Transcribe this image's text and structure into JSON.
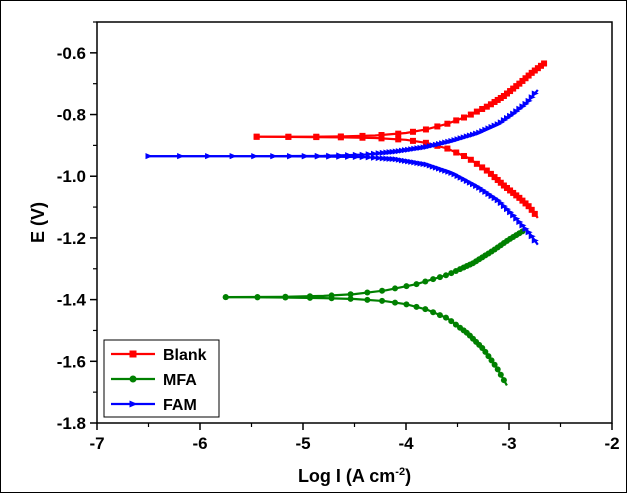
{
  "chart_data": {
    "type": "line",
    "title": "",
    "xlabel": "Log I (A cm",
    "xlabel_sup": "-2",
    "xlabel_suffix": ")",
    "ylabel": "E (V)",
    "xlim": [
      -7,
      -2
    ],
    "ylim": [
      -1.8,
      -0.5
    ],
    "xticks": [
      "-7",
      "-6",
      "-5",
      "-4",
      "-3",
      "-2"
    ],
    "yticks": [
      "-1.8",
      "-1.6",
      "-1.4",
      "-1.2",
      "-1.0",
      "-0.8",
      "-0.6"
    ],
    "grid": false,
    "legend_position": "bottom-left",
    "series": [
      {
        "name": "Blank",
        "color": "#ff0000",
        "marker": "square",
        "cathodic": [
          [
            -5.45,
            -0.872
          ],
          [
            -4.9,
            -0.873
          ],
          [
            -4.6,
            -0.874
          ],
          [
            -4.3,
            -0.876
          ],
          [
            -4.0,
            -0.882
          ],
          [
            -3.8,
            -0.892
          ],
          [
            -3.6,
            -0.91
          ],
          [
            -3.4,
            -0.94
          ],
          [
            -3.2,
            -0.985
          ],
          [
            -3.05,
            -1.03
          ],
          [
            -2.9,
            -1.07
          ],
          [
            -2.8,
            -1.1
          ],
          [
            -2.72,
            -1.135
          ]
        ],
        "anodic": [
          [
            -5.45,
            -0.872
          ],
          [
            -4.9,
            -0.872
          ],
          [
            -4.6,
            -0.871
          ],
          [
            -4.3,
            -0.868
          ],
          [
            -4.0,
            -0.86
          ],
          [
            -3.8,
            -0.848
          ],
          [
            -3.6,
            -0.83
          ],
          [
            -3.4,
            -0.805
          ],
          [
            -3.2,
            -0.772
          ],
          [
            -3.05,
            -0.74
          ],
          [
            -2.9,
            -0.7
          ],
          [
            -2.78,
            -0.665
          ],
          [
            -2.65,
            -0.632
          ]
        ]
      },
      {
        "name": "MFA",
        "color": "#008000",
        "marker": "circle",
        "cathodic": [
          [
            -5.75,
            -1.392
          ],
          [
            -5.2,
            -1.393
          ],
          [
            -4.8,
            -1.395
          ],
          [
            -4.5,
            -1.398
          ],
          [
            -4.2,
            -1.405
          ],
          [
            -4.0,
            -1.415
          ],
          [
            -3.8,
            -1.432
          ],
          [
            -3.6,
            -1.46
          ],
          [
            -3.4,
            -1.51
          ],
          [
            -3.25,
            -1.56
          ],
          [
            -3.12,
            -1.62
          ],
          [
            -3.02,
            -1.678
          ]
        ],
        "anodic": [
          [
            -5.75,
            -1.392
          ],
          [
            -5.2,
            -1.391
          ],
          [
            -4.8,
            -1.388
          ],
          [
            -4.5,
            -1.382
          ],
          [
            -4.2,
            -1.37
          ],
          [
            -3.9,
            -1.35
          ],
          [
            -3.6,
            -1.32
          ],
          [
            -3.35,
            -1.282
          ],
          [
            -3.15,
            -1.24
          ],
          [
            -3.0,
            -1.205
          ],
          [
            -2.85,
            -1.175
          ]
        ]
      },
      {
        "name": "FAM",
        "color": "#0000ff",
        "marker": "triangle-right",
        "cathodic": [
          [
            -6.5,
            -0.935
          ],
          [
            -5.5,
            -0.935
          ],
          [
            -4.8,
            -0.936
          ],
          [
            -4.4,
            -0.938
          ],
          [
            -4.1,
            -0.945
          ],
          [
            -3.8,
            -0.962
          ],
          [
            -3.55,
            -0.99
          ],
          [
            -3.3,
            -1.035
          ],
          [
            -3.1,
            -1.08
          ],
          [
            -2.95,
            -1.13
          ],
          [
            -2.8,
            -1.185
          ],
          [
            -2.72,
            -1.222
          ]
        ],
        "anodic": [
          [
            -6.5,
            -0.935
          ],
          [
            -5.5,
            -0.935
          ],
          [
            -4.8,
            -0.934
          ],
          [
            -4.4,
            -0.93
          ],
          [
            -4.1,
            -0.92
          ],
          [
            -3.8,
            -0.905
          ],
          [
            -3.55,
            -0.885
          ],
          [
            -3.3,
            -0.86
          ],
          [
            -3.1,
            -0.83
          ],
          [
            -2.95,
            -0.795
          ],
          [
            -2.82,
            -0.76
          ],
          [
            -2.72,
            -0.72
          ]
        ]
      }
    ]
  }
}
